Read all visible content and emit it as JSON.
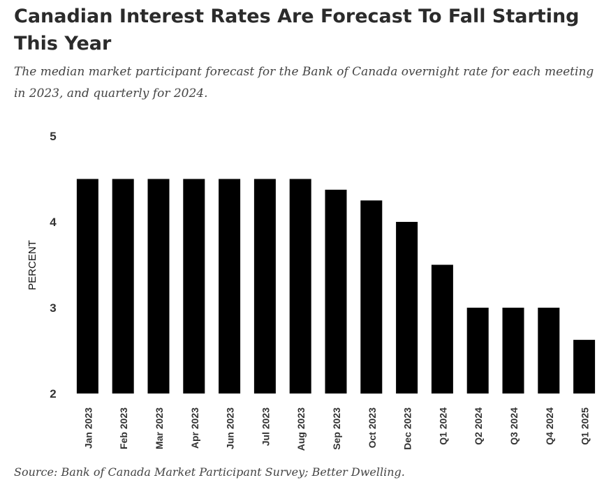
{
  "title": "Canadian Interest Rates Are Forecast To Fall Starting This Year",
  "subtitle": "The median market participant forecast for the Bank of Canada overnight rate for each meeting in 2023, and quarterly for 2024.",
  "source": "Source: Bank of Canada Market Participant Survey; Better Dwelling.",
  "colors": {
    "bar": "#000000",
    "text": "#2b2b2b",
    "axis_text": "#333333"
  },
  "chart_data": {
    "type": "bar",
    "categories": [
      "Jan 2023",
      "Feb 2023",
      "Mar 2023",
      "Apr 2023",
      "Jun 2023",
      "Jul 2023",
      "Aug 2023",
      "Sep 2023",
      "Oct 2023",
      "Dec 2023",
      "Q1 2024",
      "Q2 2024",
      "Q3 2024",
      "Q4 2024",
      "Q1 2025"
    ],
    "values": [
      4.5,
      4.5,
      4.5,
      4.5,
      4.5,
      4.5,
      4.5,
      4.375,
      4.25,
      4.0,
      3.5,
      3.0,
      3.0,
      3.0,
      2.625
    ],
    "ylabel": "PERCENT",
    "xlabel": "",
    "ylim": [
      2,
      5
    ],
    "yticks": [
      2,
      3,
      4,
      5
    ],
    "grid": false,
    "legend": "none"
  }
}
